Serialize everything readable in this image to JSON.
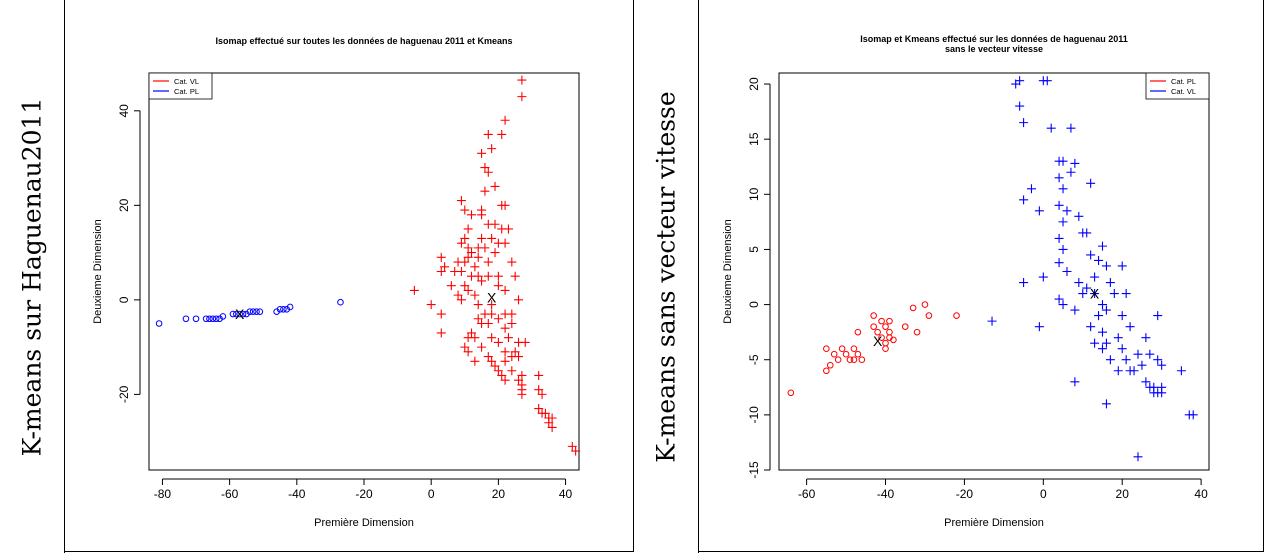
{
  "row_labels": [
    "K-means sur Haguenau2011",
    "K-means sans vecteur vitesse"
  ],
  "chart_data": [
    {
      "type": "scatter",
      "title": "Isomap effectué sur toutes les données de haguenau 2011 et Kmeans",
      "xlabel": "Première Dimension",
      "ylabel": "Deuxieme Dimension",
      "xlim": [
        -84,
        44
      ],
      "ylim": [
        -36,
        48
      ],
      "xticks": [
        -80,
        -60,
        -40,
        -20,
        0,
        20,
        40
      ],
      "yticks": [
        -20,
        0,
        20,
        40
      ],
      "legend_position": "top-left",
      "series": [
        {
          "name": "Cat. VL",
          "color": "#ff0000",
          "marker": "plus",
          "points": [
            [
              27,
              46.5
            ],
            [
              22,
              38
            ],
            [
              27,
              43
            ],
            [
              21,
              35
            ],
            [
              17,
              35
            ],
            [
              18,
              32
            ],
            [
              15,
              31
            ],
            [
              16,
              28
            ],
            [
              17,
              27
            ],
            [
              19,
              24
            ],
            [
              16,
              23
            ],
            [
              15,
              19
            ],
            [
              21,
              20
            ],
            [
              22,
              20
            ],
            [
              9,
              21
            ],
            [
              10,
              19
            ],
            [
              12,
              18
            ],
            [
              15,
              18
            ],
            [
              17,
              16
            ],
            [
              19,
              16
            ],
            [
              21,
              15
            ],
            [
              23,
              15
            ],
            [
              11,
              15
            ],
            [
              10,
              13
            ],
            [
              15,
              13
            ],
            [
              18,
              13
            ],
            [
              20,
              12
            ],
            [
              22,
              12
            ],
            [
              9,
              12
            ],
            [
              11,
              11
            ],
            [
              14,
              11
            ],
            [
              16,
              11
            ],
            [
              19,
              10
            ],
            [
              12,
              10
            ],
            [
              14,
              9
            ],
            [
              11,
              9
            ],
            [
              17,
              8
            ],
            [
              8,
              8
            ],
            [
              10,
              8
            ],
            [
              13,
              7
            ],
            [
              3,
              9
            ],
            [
              4,
              7
            ],
            [
              7,
              6
            ],
            [
              3,
              6
            ],
            [
              9,
              6
            ],
            [
              12,
              5
            ],
            [
              14,
              5
            ],
            [
              17,
              5
            ],
            [
              20,
              5
            ],
            [
              24,
              8
            ],
            [
              25,
              5
            ],
            [
              15,
              4
            ],
            [
              10,
              3
            ],
            [
              20,
              3
            ],
            [
              6,
              3
            ],
            [
              22,
              2
            ],
            [
              11,
              2
            ],
            [
              13,
              1
            ],
            [
              8,
              1
            ],
            [
              9,
              0
            ],
            [
              26,
              0
            ],
            [
              14,
              -1
            ],
            [
              18,
              -1
            ],
            [
              -5,
              2
            ],
            [
              0,
              -1
            ],
            [
              3,
              -3
            ],
            [
              16,
              -3
            ],
            [
              18,
              -3
            ],
            [
              22,
              -3
            ],
            [
              24,
              -3
            ],
            [
              20,
              -4
            ],
            [
              14,
              -4
            ],
            [
              15,
              -5
            ],
            [
              24,
              -5
            ],
            [
              17,
              -5
            ],
            [
              22,
              -6
            ],
            [
              12,
              -7
            ],
            [
              18,
              -8
            ],
            [
              23,
              -8
            ],
            [
              3,
              -7
            ],
            [
              11,
              -8
            ],
            [
              13,
              -8
            ],
            [
              20,
              -9
            ],
            [
              26,
              -9
            ],
            [
              28,
              -9
            ],
            [
              10,
              -10
            ],
            [
              15,
              -10
            ],
            [
              11,
              -11
            ],
            [
              22,
              -11
            ],
            [
              24,
              -12
            ],
            [
              25,
              -11
            ],
            [
              26,
              -12
            ],
            [
              17,
              -12
            ],
            [
              13,
              -13
            ],
            [
              18,
              -13
            ],
            [
              22,
              -13
            ],
            [
              19,
              -14
            ],
            [
              20,
              -15
            ],
            [
              21,
              -16
            ],
            [
              24,
              -15
            ],
            [
              27,
              -16
            ],
            [
              32,
              -16
            ],
            [
              22,
              -17
            ],
            [
              26,
              -17
            ],
            [
              27,
              -18
            ],
            [
              27,
              -19
            ],
            [
              27,
              -20
            ],
            [
              32,
              -19
            ],
            [
              33,
              -20
            ],
            [
              32,
              -23
            ],
            [
              33,
              -24
            ],
            [
              34,
              -24
            ],
            [
              35,
              -25
            ],
            [
              36,
              -25
            ],
            [
              35,
              -26
            ],
            [
              36,
              -27
            ],
            [
              42,
              -31
            ],
            [
              43,
              -32
            ]
          ]
        },
        {
          "name": "Cat. PL",
          "color": "#0000ff",
          "marker": "circle",
          "points": [
            [
              -81,
              -5
            ],
            [
              -73,
              -4
            ],
            [
              -70,
              -4
            ],
            [
              -67,
              -4
            ],
            [
              -66,
              -4
            ],
            [
              -65,
              -4
            ],
            [
              -64,
              -4
            ],
            [
              -63,
              -4
            ],
            [
              -62,
              -3.5
            ],
            [
              -59,
              -3
            ],
            [
              -58,
              -3
            ],
            [
              -57,
              -3
            ],
            [
              -56,
              -3
            ],
            [
              -55,
              -3
            ],
            [
              -54,
              -2.5
            ],
            [
              -53,
              -2.5
            ],
            [
              -52,
              -2.5
            ],
            [
              -51,
              -2.5
            ],
            [
              -46,
              -2.5
            ],
            [
              -45,
              -2
            ],
            [
              -44,
              -2
            ],
            [
              -43,
              -2
            ],
            [
              -42,
              -1.5
            ],
            [
              -27,
              -0.5
            ]
          ]
        }
      ],
      "centroids": [
        [
          18,
          0.5
        ],
        [
          -57,
          -3
        ]
      ],
      "centroid_marker": "X"
    },
    {
      "type": "scatter",
      "title": "Isomap et Kmeans effectué sur les données de haguenau 2011",
      "subtitle": "sans le vecteur vitesse",
      "xlabel": "Première Dimension",
      "ylabel": "Deuxieme Dimension",
      "xlim": [
        -67,
        42
      ],
      "ylim": [
        -15,
        21
      ],
      "xticks": [
        -60,
        -40,
        -20,
        0,
        20,
        40
      ],
      "yticks": [
        -15,
        -10,
        -5,
        0,
        5,
        10,
        15,
        20
      ],
      "legend_position": "top-right",
      "series": [
        {
          "name": "Cat. PL",
          "color": "#ff0000",
          "marker": "circle",
          "points": [
            [
              -64,
              -8
            ],
            [
              -55,
              -4
            ],
            [
              -55,
              -6
            ],
            [
              -54,
              -5.5
            ],
            [
              -53,
              -4.5
            ],
            [
              -52,
              -5
            ],
            [
              -51,
              -4
            ],
            [
              -50,
              -4.5
            ],
            [
              -49,
              -5
            ],
            [
              -48,
              -4
            ],
            [
              -48,
              -5
            ],
            [
              -47,
              -4.5
            ],
            [
              -46,
              -5
            ],
            [
              -47,
              -2.5
            ],
            [
              -43,
              -2
            ],
            [
              -43,
              -1
            ],
            [
              -42,
              -2.5
            ],
            [
              -41,
              -3
            ],
            [
              -41,
              -1.5
            ],
            [
              -40,
              -2
            ],
            [
              -40,
              -3.5
            ],
            [
              -40,
              -4
            ],
            [
              -39,
              -1.5
            ],
            [
              -39,
              -3
            ],
            [
              -38,
              -3.2
            ],
            [
              -35,
              -2
            ],
            [
              -33,
              -0.3
            ],
            [
              -32,
              -2.5
            ],
            [
              -30,
              0
            ],
            [
              -29,
              -1
            ],
            [
              -22,
              -1
            ],
            [
              -39,
              -2.5
            ]
          ]
        },
        {
          "name": "Cat. VL",
          "color": "#0000ff",
          "marker": "plus",
          "points": [
            [
              -7,
              20
            ],
            [
              -6,
              20.3
            ],
            [
              0,
              20.3
            ],
            [
              1,
              20.3
            ],
            [
              -6,
              18
            ],
            [
              -5,
              16.5
            ],
            [
              2,
              16
            ],
            [
              7,
              16
            ],
            [
              4,
              13
            ],
            [
              5,
              13
            ],
            [
              7,
              12
            ],
            [
              8,
              12.8
            ],
            [
              4,
              11.5
            ],
            [
              12,
              11
            ],
            [
              5,
              10.5
            ],
            [
              -3,
              10.5
            ],
            [
              4,
              9
            ],
            [
              -5,
              9.5
            ],
            [
              -1,
              8.5
            ],
            [
              6,
              8.5
            ],
            [
              9,
              8
            ],
            [
              5,
              7.5
            ],
            [
              10,
              6.5
            ],
            [
              11,
              6.5
            ],
            [
              4,
              6
            ],
            [
              15,
              5.3
            ],
            [
              5,
              5
            ],
            [
              12,
              4.5
            ],
            [
              14,
              4
            ],
            [
              4,
              3.8
            ],
            [
              16,
              3.5
            ],
            [
              20,
              3.5
            ],
            [
              6,
              3
            ],
            [
              13,
              2.5
            ],
            [
              -5,
              2
            ],
            [
              0,
              2.5
            ],
            [
              9,
              2
            ],
            [
              17,
              2
            ],
            [
              11,
              1.5
            ],
            [
              13,
              1
            ],
            [
              10,
              1
            ],
            [
              18,
              1
            ],
            [
              21,
              1
            ],
            [
              4,
              0.5
            ],
            [
              5,
              0
            ],
            [
              15,
              0
            ],
            [
              8,
              -0.5
            ],
            [
              16,
              -0.5
            ],
            [
              14,
              -1
            ],
            [
              20,
              -1
            ],
            [
              -13,
              -1.5
            ],
            [
              -1,
              -2
            ],
            [
              12,
              -2
            ],
            [
              15,
              -2.5
            ],
            [
              22,
              -2
            ],
            [
              29,
              -1
            ],
            [
              19,
              -3
            ],
            [
              13,
              -3.5
            ],
            [
              16,
              -3.5
            ],
            [
              26,
              -3
            ],
            [
              15,
              -4
            ],
            [
              20,
              -4
            ],
            [
              24,
              -4.5
            ],
            [
              27,
              -4.5
            ],
            [
              17,
              -5
            ],
            [
              21,
              -5
            ],
            [
              22,
              -6
            ],
            [
              23,
              -6
            ],
            [
              29,
              -5
            ],
            [
              25,
              -5.5
            ],
            [
              30,
              -5.5
            ],
            [
              19,
              -6
            ],
            [
              26,
              -7
            ],
            [
              27,
              -7.5
            ],
            [
              28,
              -7.5
            ],
            [
              30,
              -7.5
            ],
            [
              35,
              -6
            ],
            [
              8,
              -7
            ],
            [
              28,
              -8
            ],
            [
              29,
              -8
            ],
            [
              30,
              -8
            ],
            [
              16,
              -9
            ],
            [
              37,
              -10
            ],
            [
              38,
              -10
            ],
            [
              24,
              -13.8
            ]
          ]
        }
      ],
      "centroids": [
        [
          -42,
          -3.3
        ],
        [
          13,
          1
        ]
      ],
      "centroid_marker": "X"
    }
  ]
}
